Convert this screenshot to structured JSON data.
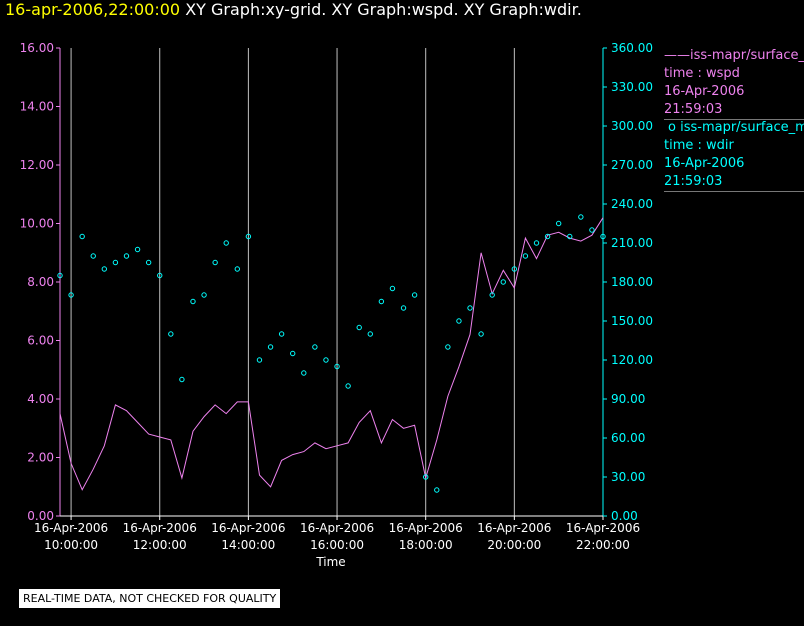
{
  "header": {
    "timestamp": "16-apr-2006,22:00:00",
    "graphs": "XY Graph:xy-grid.  XY Graph:wspd.  XY Graph:wdir."
  },
  "legend": {
    "entries": [
      {
        "marker": "——",
        "series": "iss-mapr/surface_m",
        "line1": "time : wspd",
        "line2": "16-Apr-2006",
        "line3": "21:59:03"
      },
      {
        "marker": "o",
        "series": "iss-mapr/surface_m",
        "line1": "time : wdir",
        "line2": "16-Apr-2006",
        "line3": "21:59:03"
      }
    ]
  },
  "footer": {
    "note": "REAL-TIME DATA, NOT CHECKED FOR QUALITY"
  },
  "colors": {
    "wspd": "#ee82ee",
    "wdir": "#00ffff",
    "grid": "#c0c0c0",
    "background": "#000000"
  },
  "chart_data": {
    "type": "line",
    "xlabel": "Time",
    "x_ticks": [
      {
        "date": "16-Apr-2006",
        "time": "10:00:00",
        "hour": 10
      },
      {
        "date": "16-Apr-2006",
        "time": "12:00:00",
        "hour": 12
      },
      {
        "date": "16-Apr-2006",
        "time": "14:00:00",
        "hour": 14
      },
      {
        "date": "16-Apr-2006",
        "time": "16:00:00",
        "hour": 16
      },
      {
        "date": "16-Apr-2006",
        "time": "18:00:00",
        "hour": 18
      },
      {
        "date": "16-Apr-2006",
        "time": "20:00:00",
        "hour": 20
      },
      {
        "date": "16-Apr-2006",
        "time": "22:00:00",
        "hour": 22
      }
    ],
    "xlim": [
      "16-Apr-2006 09:45:00",
      "16-Apr-2006 22:00:00"
    ],
    "y_left": {
      "ylim": [
        0,
        16
      ],
      "ticks": [
        "0.00",
        "2.00",
        "4.00",
        "6.00",
        "8.00",
        "10.00",
        "12.00",
        "14.00",
        "16.00"
      ]
    },
    "y_right": {
      "ylim": [
        0,
        360
      ],
      "ticks": [
        "0.00",
        "30.00",
        "60.00",
        "90.00",
        "120.00",
        "150.00",
        "180.00",
        "210.00",
        "240.00",
        "270.00",
        "300.00",
        "330.00",
        "360.00"
      ]
    },
    "grid": "vertical",
    "series": [
      {
        "name": "iss-mapr/surface_m time : wspd",
        "type": "line",
        "axis": "left",
        "x_hours": [
          9.75,
          10.0,
          10.25,
          10.5,
          10.75,
          11.0,
          11.25,
          11.5,
          11.75,
          12.0,
          12.25,
          12.5,
          12.75,
          13.0,
          13.25,
          13.5,
          13.75,
          14.0,
          14.25,
          14.5,
          14.75,
          15.0,
          15.25,
          15.5,
          15.75,
          16.0,
          16.25,
          16.5,
          16.75,
          17.0,
          17.25,
          17.5,
          17.75,
          18.0,
          18.25,
          18.5,
          18.75,
          19.0,
          19.25,
          19.5,
          19.75,
          20.0,
          20.25,
          20.5,
          20.75,
          21.0,
          21.25,
          21.5,
          21.75,
          22.0
        ],
        "values": [
          3.5,
          1.8,
          0.9,
          1.6,
          2.4,
          3.8,
          3.6,
          3.2,
          2.8,
          2.7,
          2.6,
          1.3,
          2.9,
          3.4,
          3.8,
          3.5,
          3.9,
          3.9,
          1.4,
          1.0,
          1.9,
          2.1,
          2.2,
          2.5,
          2.3,
          2.4,
          2.5,
          3.2,
          3.6,
          2.5,
          3.3,
          3.0,
          3.1,
          1.3,
          2.6,
          4.1,
          5.1,
          6.2,
          9.0,
          7.6,
          8.4,
          7.8,
          9.5,
          8.8,
          9.6,
          9.7,
          9.5,
          9.4,
          9.6,
          10.2
        ]
      },
      {
        "name": "iss-mapr/surface_m time : wdir",
        "type": "scatter",
        "axis": "right",
        "x_hours": [
          9.75,
          10.0,
          10.25,
          10.5,
          10.75,
          11.0,
          11.25,
          11.5,
          11.75,
          12.0,
          12.25,
          12.5,
          12.75,
          13.0,
          13.25,
          13.5,
          13.75,
          14.0,
          14.25,
          14.5,
          14.75,
          15.0,
          15.25,
          15.5,
          15.75,
          16.0,
          16.25,
          16.5,
          16.75,
          17.0,
          17.25,
          17.5,
          17.75,
          18.0,
          18.25,
          18.5,
          18.75,
          19.0,
          19.25,
          19.5,
          19.75,
          20.0,
          20.25,
          20.5,
          20.75,
          21.0,
          21.25,
          21.5,
          21.75,
          22.0
        ],
        "values": [
          185,
          170,
          215,
          200,
          190,
          195,
          200,
          205,
          195,
          185,
          140,
          105,
          165,
          170,
          195,
          210,
          190,
          215,
          120,
          130,
          140,
          125,
          110,
          130,
          120,
          115,
          100,
          145,
          140,
          165,
          175,
          160,
          170,
          30,
          20,
          130,
          150,
          160,
          140,
          170,
          180,
          190,
          200,
          210,
          215,
          225,
          215,
          230,
          220,
          215
        ]
      }
    ]
  }
}
